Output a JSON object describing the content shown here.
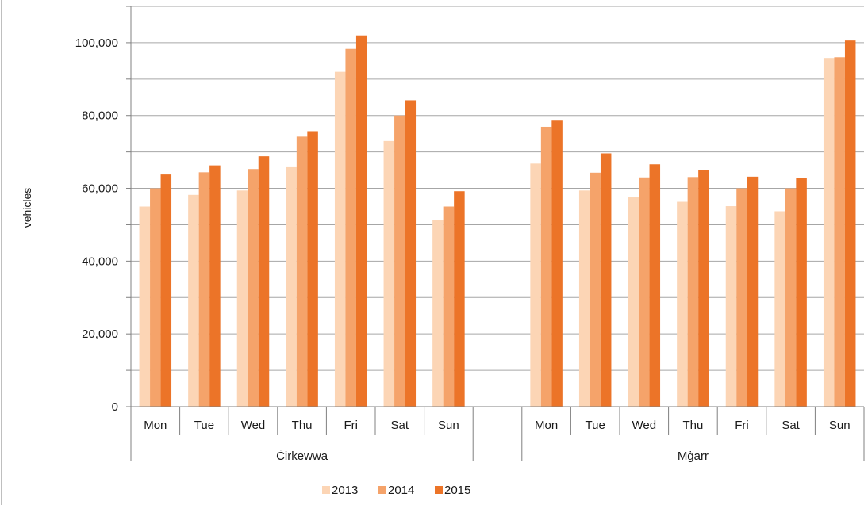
{
  "chart_data": {
    "type": "bar",
    "ylabel": "vehicles",
    "ylim": [
      0,
      110000
    ],
    "ytick_values": [
      0,
      20000,
      40000,
      60000,
      80000,
      100000
    ],
    "ytick_labels": [
      "0",
      "20,000",
      "40,000",
      "60,000",
      "80,000",
      "100,000"
    ],
    "grid": true,
    "legend_position": "bottom-center",
    "series": [
      {
        "name": "2013",
        "color": "#fcd5b5"
      },
      {
        "name": "2014",
        "color": "#f5a36a"
      },
      {
        "name": "2015",
        "color": "#ec7428"
      }
    ],
    "groups": [
      {
        "name": "Ċirkewwa",
        "categories": [
          "Mon",
          "Tue",
          "Wed",
          "Thu",
          "Fri",
          "Sat",
          "Sun"
        ],
        "values": [
          [
            55000,
            58200,
            59400,
            65800,
            92000,
            73000,
            51400
          ],
          [
            60000,
            64400,
            65300,
            74200,
            98300,
            80000,
            55000
          ],
          [
            63800,
            66300,
            68800,
            75700,
            102000,
            84200,
            59200
          ]
        ]
      },
      {
        "name": "Mġarr",
        "categories": [
          "Mon",
          "Tue",
          "Wed",
          "Thu",
          "Fri",
          "Sat",
          "Sun"
        ],
        "values": [
          [
            66800,
            59400,
            57500,
            56300,
            55100,
            53700,
            95800
          ],
          [
            76900,
            64300,
            63000,
            63100,
            60000,
            60000,
            96000
          ],
          [
            78800,
            69600,
            66600,
            65100,
            63200,
            62800,
            100600
          ]
        ]
      }
    ]
  }
}
